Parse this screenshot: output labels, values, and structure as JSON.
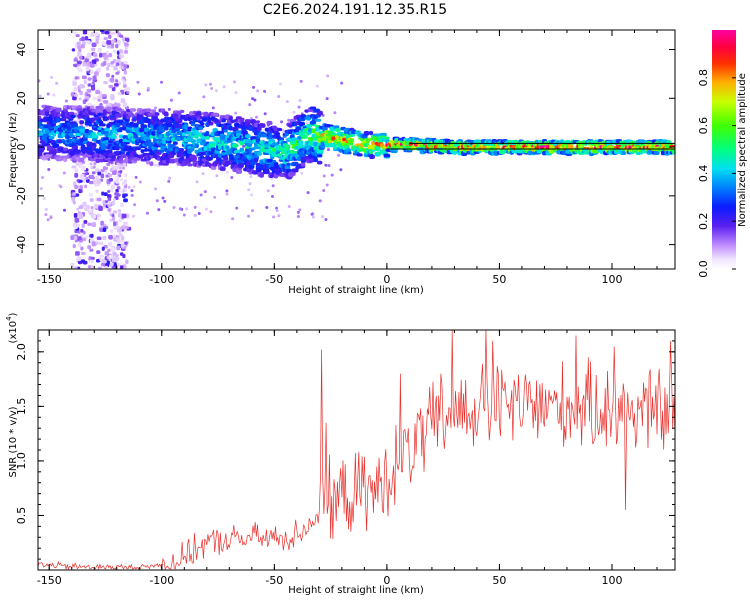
{
  "title": "C2E6.2024.191.12.35.R15",
  "chart_data": [
    {
      "type": "heatmap",
      "xlabel": "Height of straight line (km)",
      "ylabel": "Frequency (Hz)",
      "xlim": [
        -155,
        128
      ],
      "ylim": [
        -50,
        48
      ],
      "xticks": [
        -150,
        -100,
        -50,
        0,
        50,
        100
      ],
      "yticks": [
        -40,
        -20,
        0,
        20,
        40
      ],
      "colorbar": {
        "label": "Normalized spectral amplitude",
        "range": [
          0.0,
          1.0
        ],
        "ticks": [
          "0.0",
          "0.2",
          "0.4",
          "0.6",
          "0.8"
        ],
        "colormap": "white-violet-blue-cyan-green-yellow-red-magenta"
      },
      "ridge": [
        {
          "x": -150,
          "y": 6,
          "amp": 0.4
        },
        {
          "x": -120,
          "y": 5,
          "amp": 0.45
        },
        {
          "x": -100,
          "y": 4,
          "amp": 0.45
        },
        {
          "x": -80,
          "y": 3,
          "amp": 0.5
        },
        {
          "x": -60,
          "y": 0,
          "amp": 0.5
        },
        {
          "x": -45,
          "y": -2,
          "amp": 0.55
        },
        {
          "x": -35,
          "y": 5,
          "amp": 0.6
        },
        {
          "x": -25,
          "y": 4,
          "amp": 0.8
        },
        {
          "x": -10,
          "y": 1,
          "amp": 0.75
        },
        {
          "x": 0,
          "y": 1,
          "amp": 0.8
        },
        {
          "x": 10,
          "y": 1,
          "amp": 0.85
        },
        {
          "x": 30,
          "y": 0,
          "amp": 0.85
        },
        {
          "x": 60,
          "y": 0,
          "amp": 0.9
        },
        {
          "x": 128,
          "y": 0,
          "amp": 0.9
        }
      ],
      "noise_band": {
        "x": [
          -140,
          -115
        ],
        "y": [
          -50,
          48
        ]
      },
      "colors": {
        "ridge_line": "#000000"
      }
    },
    {
      "type": "line",
      "xlabel": "Height of straight line (km)",
      "ylabel": "SNR (10 * v/v)",
      "multiplier": "(x10",
      "multiplier_exp": "4",
      "multiplier_close": ")",
      "xlim": [
        -155,
        128
      ],
      "ylim": [
        0,
        2.2
      ],
      "xticks": [
        -150,
        -100,
        -50,
        0,
        50,
        100
      ],
      "yticks": [
        "0.5",
        "1.0",
        "1.5",
        "2.0"
      ],
      "series": [
        {
          "color": "#e8302b",
          "envelope": [
            {
              "x": -155,
              "y": 0.05
            },
            {
              "x": -140,
              "y": 0.03
            },
            {
              "x": -110,
              "y": 0.02
            },
            {
              "x": -95,
              "y": 0.06
            },
            {
              "x": -80,
              "y": 0.25
            },
            {
              "x": -60,
              "y": 0.3
            },
            {
              "x": -45,
              "y": 0.28
            },
            {
              "x": -35,
              "y": 0.4
            },
            {
              "x": -28,
              "y": 0.6
            },
            {
              "x": -15,
              "y": 0.7
            },
            {
              "x": -5,
              "y": 0.72
            },
            {
              "x": 0,
              "y": 0.85
            },
            {
              "x": 10,
              "y": 1.1
            },
            {
              "x": 20,
              "y": 1.3
            },
            {
              "x": 30,
              "y": 1.45
            },
            {
              "x": 50,
              "y": 1.5
            },
            {
              "x": 80,
              "y": 1.5
            },
            {
              "x": 128,
              "y": 1.45
            }
          ],
          "peaks": [
            {
              "x": -29,
              "y": 2.02
            },
            {
              "x": -27,
              "y": 1.35
            },
            {
              "x": 6,
              "y": 1.8
            },
            {
              "x": 24,
              "y": 1.8
            },
            {
              "x": 29,
              "y": 2.2
            },
            {
              "x": 44,
              "y": 2.2
            },
            {
              "x": 47,
              "y": 2.1
            },
            {
              "x": 84,
              "y": 2.15
            },
            {
              "x": 101,
              "y": 2.05
            },
            {
              "x": 126,
              "y": 2.1
            },
            {
              "x": 106,
              "y": 0.55
            }
          ]
        }
      ]
    }
  ]
}
